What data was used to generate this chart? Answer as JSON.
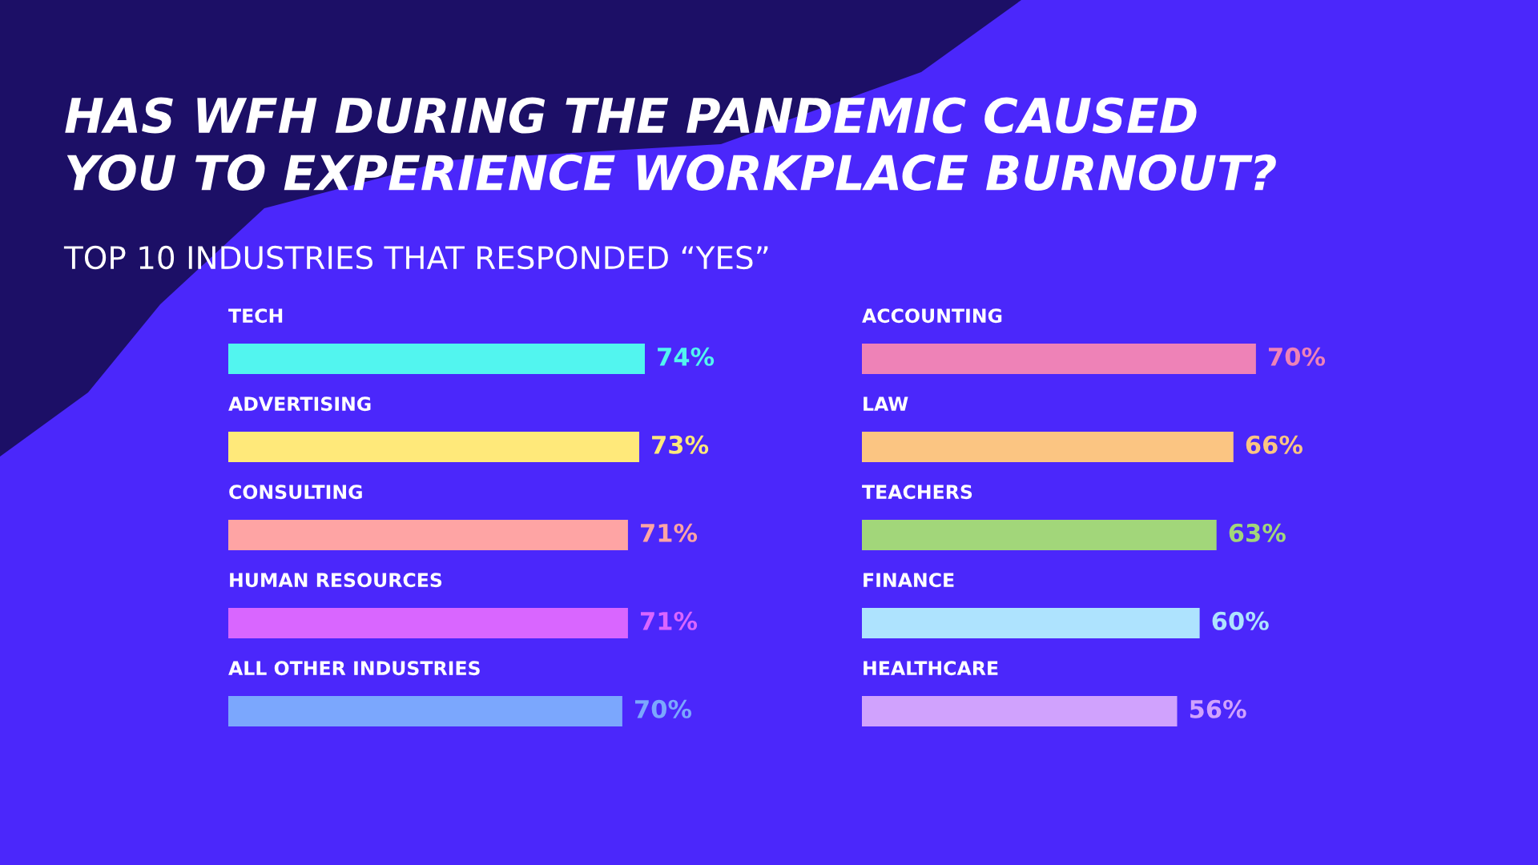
{
  "chart_data": [
    {
      "type": "bar",
      "orientation": "horizontal",
      "title": "HAS WFH DURING THE PANDEMIC CAUSED\nYOU TO EXPERIENCE WORKPLACE BURNOUT?",
      "subtitle": "TOP 10 INDUSTRIES THAT RESPONDED “YES”",
      "categories": [
        "TECH",
        "ADVERTISING",
        "CONSULTING",
        "HUMAN RESOURCES",
        "ALL OTHER INDUSTRIES"
      ],
      "values": [
        74,
        73,
        71,
        71,
        70
      ],
      "colors": [
        "#52f5ef",
        "#ffe97a",
        "#fea4a4",
        "#d966ff",
        "#7ba7fd"
      ],
      "value_labels": [
        "74%",
        "73%",
        "71%",
        "71%",
        "70%"
      ]
    },
    {
      "type": "bar",
      "orientation": "horizontal",
      "categories": [
        "ACCOUNTING",
        "LAW",
        "TEACHERS",
        "FINANCE",
        "HEALTHCARE"
      ],
      "values": [
        70,
        66,
        63,
        60,
        56
      ],
      "colors": [
        "#ee82b7",
        "#fbc582",
        "#a2d67a",
        "#aee3fe",
        "#d0a2fd"
      ],
      "value_labels": [
        "70%",
        "66%",
        "63%",
        "60%",
        "56%"
      ]
    }
  ]
}
